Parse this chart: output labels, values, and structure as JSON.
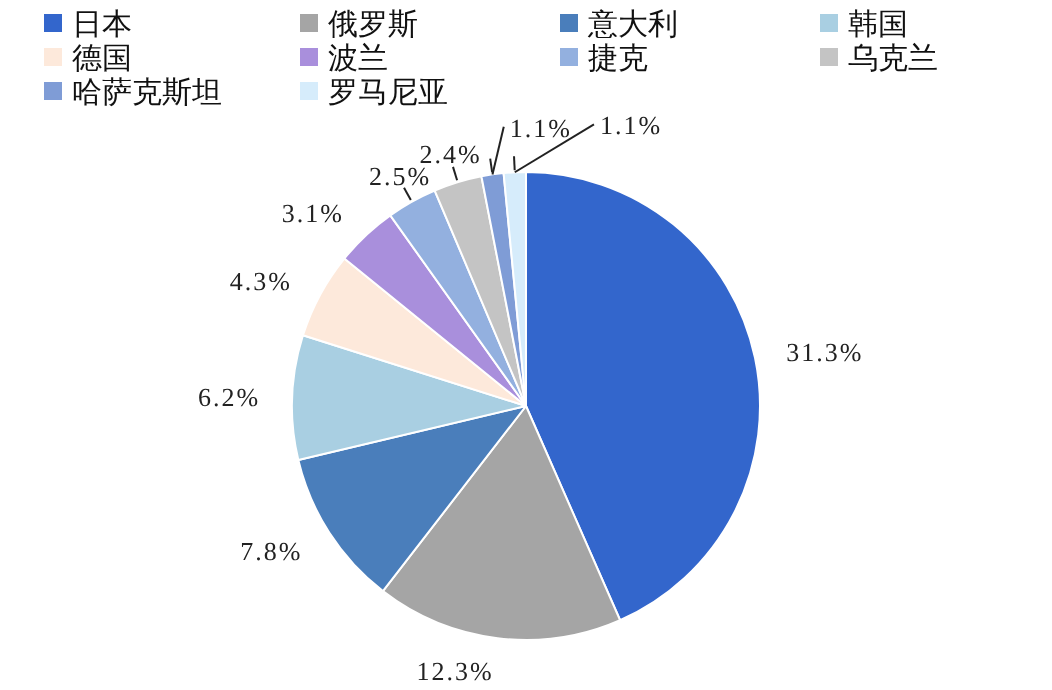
{
  "chart_data": {
    "type": "pie",
    "categories": [
      "日本",
      "俄罗斯",
      "意大利",
      "韩国",
      "德国",
      "波兰",
      "捷克",
      "乌克兰",
      "哈萨克斯坦",
      "罗马尼亚"
    ],
    "values": [
      31.3,
      12.3,
      7.8,
      6.2,
      4.3,
      3.1,
      2.5,
      2.4,
      1.1,
      1.1
    ],
    "colors": [
      "#3366cc",
      "#a5a5a5",
      "#4a7ebb",
      "#a9cfe2",
      "#fde9db",
      "#a98fdc",
      "#93b0df",
      "#c4c4c4",
      "#7f9cd6",
      "#d6ecfb"
    ],
    "value_labels": [
      "31.3%",
      "12.3%",
      "7.8%",
      "6.2%",
      "4.3%",
      "3.1%",
      "2.5%",
      "2.4%",
      "1.1%",
      "1.1%"
    ],
    "legend": "top"
  }
}
